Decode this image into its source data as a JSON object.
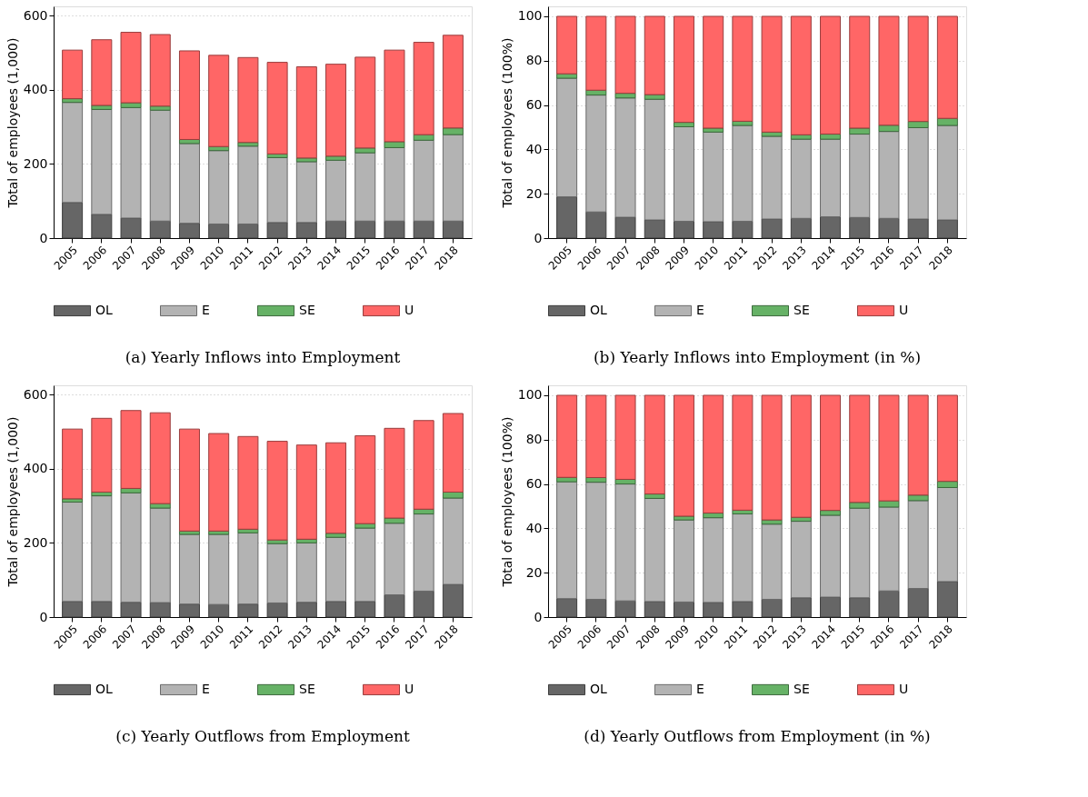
{
  "chart_data": [
    {
      "type": "bar",
      "title": "(a) Yearly Inflows into Employment",
      "ylabel": "Total of employees (1,000)",
      "stacked": true,
      "grid": "y",
      "legend": "bottom",
      "ylim": [
        0,
        625
      ],
      "yticks": [
        0,
        200,
        400,
        600
      ],
      "categories": [
        "2005",
        "2006",
        "2007",
        "2008",
        "2009",
        "2010",
        "2011",
        "2012",
        "2013",
        "2014",
        "2015",
        "2016",
        "2017",
        "2018"
      ],
      "series": [
        {
          "name": "OL",
          "color": "#666666",
          "values": [
            96,
            64,
            54,
            46,
            40,
            38,
            38,
            42,
            42,
            46,
            46,
            46,
            46,
            46
          ]
        },
        {
          "name": "E",
          "color": "#b3b3b3",
          "values": [
            270,
            283,
            298,
            299,
            215,
            198,
            210,
            175,
            164,
            164,
            184,
            198,
            218,
            233
          ]
        },
        {
          "name": "SE",
          "color": "#66b266",
          "values": [
            10,
            11,
            13,
            11,
            11,
            11,
            10,
            10,
            10,
            11,
            13,
            16,
            15,
            18
          ]
        },
        {
          "name": "U",
          "color": "#ff6666",
          "values": [
            131,
            177,
            190,
            193,
            239,
            246,
            229,
            247,
            246,
            248,
            245,
            247,
            249,
            250
          ]
        }
      ]
    },
    {
      "type": "bar",
      "title": "(b) Yearly Inflows into Employment (in %)",
      "ylabel": "Total of employees (100%)",
      "stacked": true,
      "grid": "y",
      "legend": "bottom",
      "ylim": [
        0,
        104.5
      ],
      "yticks": [
        0,
        20,
        40,
        60,
        80,
        100
      ],
      "categories": [
        "2005",
        "2006",
        "2007",
        "2008",
        "2009",
        "2010",
        "2011",
        "2012",
        "2013",
        "2014",
        "2015",
        "2016",
        "2017",
        "2018"
      ],
      "series": [
        {
          "name": "OL",
          "color": "#666666",
          "values": [
            18.6,
            11.8,
            9.4,
            8.2,
            7.6,
            7.4,
            7.6,
            8.6,
            8.9,
            9.6,
            9.3,
            8.9,
            8.6,
            8.2
          ]
        },
        {
          "name": "E",
          "color": "#b3b3b3",
          "values": [
            53.5,
            52.7,
            53.8,
            54.4,
            42.6,
            40.4,
            43.2,
            37.3,
            35.7,
            35,
            37.6,
            39.2,
            41.2,
            42.6
          ]
        },
        {
          "name": "SE",
          "color": "#66b266",
          "values": [
            2,
            2.2,
            2.1,
            2.1,
            2,
            1.8,
            1.9,
            1.9,
            2,
            2.3,
            2.7,
            2.8,
            2.8,
            3.2
          ]
        },
        {
          "name": "U",
          "color": "#ff6666",
          "values": [
            25.9,
            33.3,
            34.7,
            35.3,
            47.8,
            50.4,
            47.3,
            52.2,
            53.4,
            53.1,
            50.4,
            49.1,
            47.4,
            46
          ]
        }
      ]
    },
    {
      "type": "bar",
      "title": "(c) Yearly Outflows from Employment",
      "ylabel": "Total of employees (1,000)",
      "stacked": true,
      "grid": "y",
      "legend": "bottom",
      "ylim": [
        0,
        625
      ],
      "yticks": [
        0,
        200,
        400,
        600
      ],
      "categories": [
        "2005",
        "2006",
        "2007",
        "2008",
        "2009",
        "2010",
        "2011",
        "2012",
        "2013",
        "2014",
        "2015",
        "2016",
        "2017",
        "2018"
      ],
      "series": [
        {
          "name": "OL",
          "color": "#666666",
          "values": [
            42,
            42,
            40,
            39,
            35,
            34,
            35,
            38,
            40,
            42,
            42,
            60,
            70,
            88
          ]
        },
        {
          "name": "E",
          "color": "#b3b3b3",
          "values": [
            268,
            285,
            295,
            255,
            188,
            189,
            192,
            160,
            160,
            173,
            198,
            193,
            208,
            233
          ]
        },
        {
          "name": "SE",
          "color": "#66b266",
          "values": [
            9,
            10,
            12,
            12,
            9,
            9,
            10,
            10,
            10,
            11,
            12,
            14,
            13,
            16
          ]
        },
        {
          "name": "U",
          "color": "#ff6666",
          "values": [
            188,
            199,
            210,
            245,
            275,
            263,
            250,
            266,
            254,
            244,
            237,
            242,
            239,
            212
          ]
        }
      ]
    },
    {
      "type": "bar",
      "title": "(d) Yearly Outflows from Employment (in %)",
      "ylabel": "Total of employees (100%)",
      "stacked": true,
      "grid": "y",
      "legend": "bottom",
      "ylim": [
        0,
        104.5
      ],
      "yticks": [
        0,
        20,
        40,
        60,
        80,
        100
      ],
      "categories": [
        "2005",
        "2006",
        "2007",
        "2008",
        "2009",
        "2010",
        "2011",
        "2012",
        "2013",
        "2014",
        "2015",
        "2016",
        "2017",
        "2018"
      ],
      "series": [
        {
          "name": "OL",
          "color": "#666666",
          "values": [
            8.3,
            8,
            7.3,
            7,
            6.8,
            6.6,
            7,
            8,
            8.7,
            9,
            8.7,
            11.8,
            12.9,
            16
          ]
        },
        {
          "name": "E",
          "color": "#b3b3b3",
          "values": [
            52.7,
            52.8,
            52.7,
            46.5,
            37,
            38.2,
            39.5,
            33.9,
            34.5,
            36.9,
            40.4,
            37.8,
            39.6,
            42.4
          ]
        },
        {
          "name": "SE",
          "color": "#66b266",
          "values": [
            2,
            2.1,
            2.1,
            2,
            1.7,
            2.1,
            1.7,
            1.9,
            1.8,
            2.2,
            2.6,
            2.8,
            2.5,
            2.8
          ]
        },
        {
          "name": "U",
          "color": "#ff6666",
          "values": [
            37,
            37.1,
            37.9,
            44.5,
            54.5,
            53.1,
            51.8,
            56.2,
            55,
            51.9,
            48.3,
            47.6,
            45,
            38.8
          ]
        }
      ]
    }
  ]
}
